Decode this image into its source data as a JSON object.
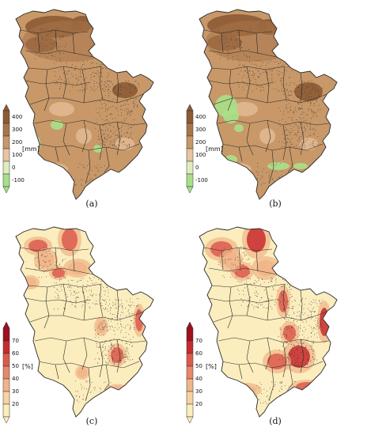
{
  "panels": [
    {
      "id": "a",
      "caption": "(a)",
      "unit": "[mm]",
      "colors": [
        "#a8e08a",
        "#e0ecc0",
        "#e8c4a0",
        "#c89868",
        "#a8744a",
        "#8c5a34"
      ],
      "ticks": [
        "400",
        "300",
        "200",
        "100",
        "0",
        "-100"
      ]
    },
    {
      "id": "b",
      "caption": "(b)",
      "unit": "[mm]",
      "colors": [
        "#a8e08a",
        "#e0ecc0",
        "#e8c4a0",
        "#c89868",
        "#a8744a",
        "#8c5a34"
      ],
      "ticks": [
        "400",
        "300",
        "200",
        "100",
        "0",
        "-100"
      ]
    },
    {
      "id": "c",
      "caption": "(c)",
      "unit": "[%]",
      "colors": [
        "#fbedbd",
        "#f6d3a4",
        "#f0b487",
        "#e8876a",
        "#dc5a4c",
        "#c82a2e",
        "#a01020"
      ],
      "ticks": [
        "70",
        "60",
        "50",
        "40",
        "30",
        "20"
      ]
    },
    {
      "id": "d",
      "caption": "(d)",
      "unit": "[%]",
      "colors": [
        "#fbedbd",
        "#f6d3a4",
        "#f0b487",
        "#e8876a",
        "#dc5a4c",
        "#c82a2e",
        "#a01020"
      ],
      "ticks": [
        "70",
        "60",
        "50",
        "40",
        "30",
        "20"
      ]
    }
  ],
  "map_style": {
    "border_color": "#2a2a2a",
    "stipple_color": "#3a3a3a",
    "precip_base": "#c89868",
    "precip_dark": "#a8744a",
    "precip_darkest": "#8c5a34",
    "precip_light": "#e0b890",
    "precip_green": "#a8e08a",
    "pct_base": "#fbedbd",
    "pct_mid": "#f0b487",
    "pct_high": "#dc5a4c",
    "pct_peak": "#c82a2e"
  }
}
